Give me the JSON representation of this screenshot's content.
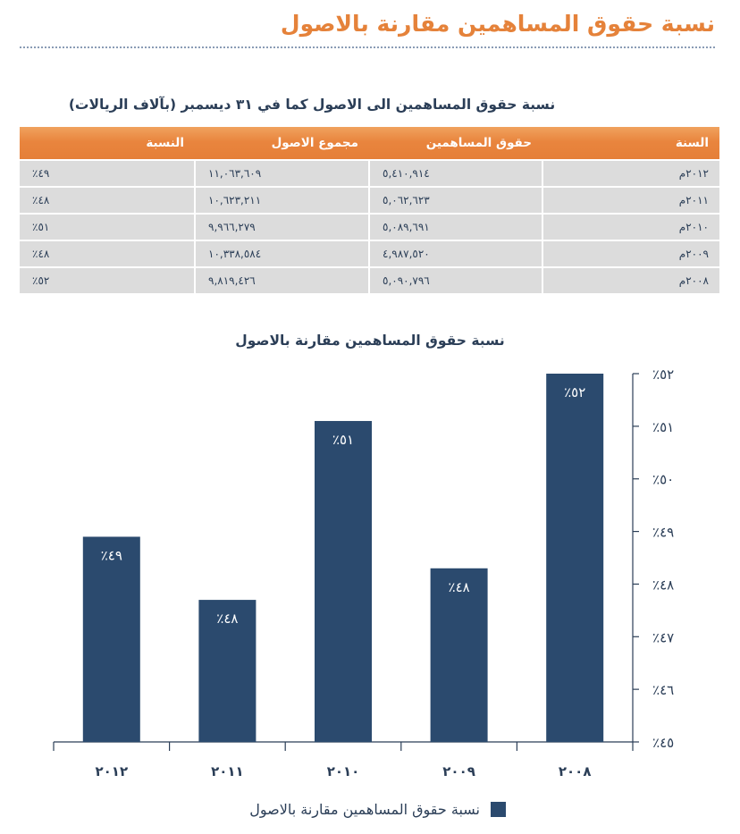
{
  "page": {
    "title": "نسبة حقوق المساهمين مقارنة بالاصول"
  },
  "table": {
    "title": "نسبة حقوق المساهمين الى الاصول كما في ٣١ ديسمبر (بآلاف الريالات)",
    "headers": [
      "السنة",
      "حقوق المساهمين",
      "مجموع الاصول",
      "النسبة"
    ],
    "rows": [
      [
        "٢٠١٢م",
        "٥,٤١٠,٩١٤",
        "١١,٠٦٣,٦٠٩",
        "٪٤٩"
      ],
      [
        "٢٠١١م",
        "٥,٠٦٢,٦٢٣",
        "١٠,٦٢٣,٢١١",
        "٪٤٨"
      ],
      [
        "٢٠١٠م",
        "٥,٠٨٩,٦٩١",
        "٩,٩٦٦,٢٧٩",
        "٪٥١"
      ],
      [
        "٢٠٠٩م",
        "٤,٩٨٧,٥٢٠",
        "١٠,٣٣٨,٥٨٤",
        "٪٤٨"
      ],
      [
        "٢٠٠٨م",
        "٥,٠٩٠,٧٩٦",
        "٩,٨١٩,٤٢٦",
        "٪٥٢"
      ]
    ]
  },
  "legend": {
    "label": "نسبة حقوق المساهمين مقارنة بالاصول"
  },
  "chart_data": {
    "type": "bar",
    "title": "نسبة حقوق المساهمين مقارنة بالاصول",
    "categories": [
      "٢٠١٢",
      "٢٠١١",
      "٢٠١٠",
      "٢٠٠٩",
      "٢٠٠٨"
    ],
    "values": [
      49,
      48,
      51,
      48,
      52
    ],
    "display_values": [
      48.9,
      47.7,
      51.1,
      48.3,
      52
    ],
    "data_labels": [
      "٪٤٩",
      "٪٤٨",
      "٪٥١",
      "٪٤٨",
      "٪٥٢"
    ],
    "ylim": [
      45,
      52
    ],
    "yticks": [
      45,
      46,
      47,
      48,
      49,
      50,
      51,
      52
    ],
    "ytick_labels": [
      "٪٤٥",
      "٪٤٦",
      "٪٤٧",
      "٪٤٨",
      "٪٤٩",
      "٪٥٠",
      "٪٥١",
      "٪٥٢"
    ],
    "yaxis_position": "right",
    "xlabel": "",
    "ylabel": "",
    "legend": [
      "نسبة حقوق المساهمين مقارنة بالاصول"
    ],
    "legend_position": "bottom",
    "bar_color": "#2b4a6e",
    "label_color": "#ffffff",
    "axis_color": "#2b3e57",
    "grid": false
  }
}
